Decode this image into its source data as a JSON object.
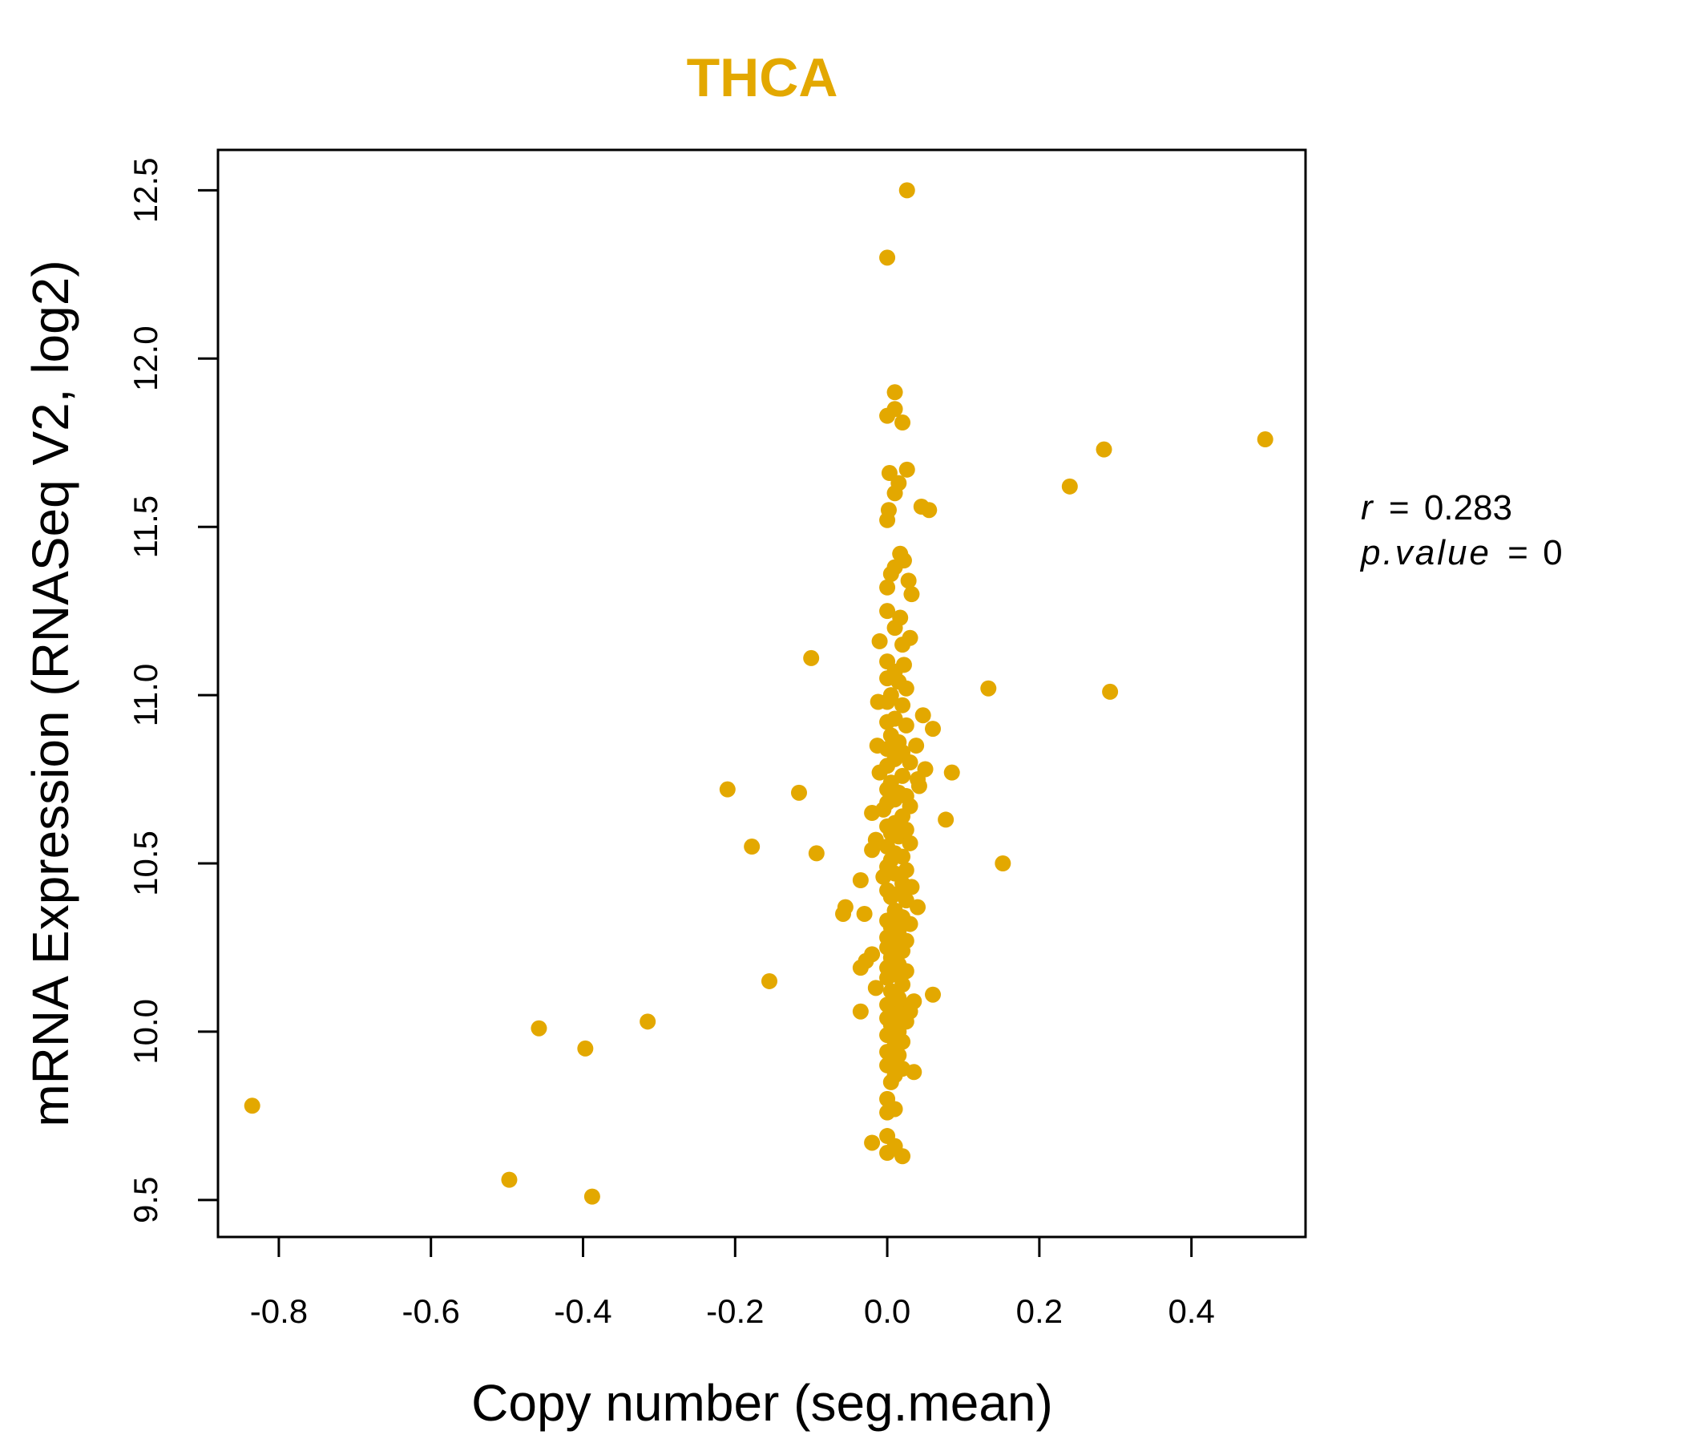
{
  "chart_data": {
    "type": "scatter",
    "title": "THCA",
    "xlabel": "Copy number (seg.mean)",
    "ylabel": "mRNA Expression (RNASeq V2, log2)",
    "xlim": [
      -0.88,
      0.55
    ],
    "ylim": [
      9.39,
      12.62
    ],
    "xticks": [
      -0.8,
      -0.6,
      -0.4,
      -0.2,
      0.0,
      0.2,
      0.4
    ],
    "xtick_labels": [
      "-0.8",
      "-0.6",
      "-0.4",
      "-0.2",
      "0.0",
      "0.2",
      "0.4"
    ],
    "yticks": [
      9.5,
      10.0,
      10.5,
      11.0,
      11.5,
      12.0,
      12.5
    ],
    "ytick_labels": [
      "9.5",
      "10.0",
      "10.5",
      "11.0",
      "11.5",
      "12.0",
      "12.5"
    ],
    "color": "#E3A800",
    "stats": {
      "r_label": "r",
      "r_value": "0.283",
      "p_label": "p.value",
      "p_value": "0"
    },
    "points": [
      [
        0.026,
        12.5
      ],
      [
        0.0,
        12.3
      ],
      [
        0.01,
        11.9
      ],
      [
        0.0,
        11.83
      ],
      [
        0.01,
        11.85
      ],
      [
        0.02,
        11.81
      ],
      [
        0.497,
        11.76
      ],
      [
        0.285,
        11.73
      ],
      [
        0.026,
        11.67
      ],
      [
        0.003,
        11.66
      ],
      [
        0.015,
        11.63
      ],
      [
        0.01,
        11.6
      ],
      [
        0.24,
        11.62
      ],
      [
        0.045,
        11.56
      ],
      [
        0.055,
        11.55
      ],
      [
        0.002,
        11.55
      ],
      [
        0.0,
        11.52
      ],
      [
        0.017,
        11.42
      ],
      [
        0.022,
        11.4
      ],
      [
        0.01,
        11.38
      ],
      [
        0.005,
        11.36
      ],
      [
        0.028,
        11.34
      ],
      [
        0.0,
        11.32
      ],
      [
        0.032,
        11.3
      ],
      [
        0.0,
        11.25
      ],
      [
        0.017,
        11.23
      ],
      [
        0.01,
        11.2
      ],
      [
        0.03,
        11.17
      ],
      [
        -0.01,
        11.16
      ],
      [
        0.02,
        11.15
      ],
      [
        -0.1,
        11.11
      ],
      [
        0.0,
        11.1
      ],
      [
        0.022,
        11.09
      ],
      [
        0.01,
        11.07
      ],
      [
        0.0,
        11.05
      ],
      [
        0.015,
        11.04
      ],
      [
        0.025,
        11.02
      ],
      [
        0.133,
        11.02
      ],
      [
        0.293,
        11.01
      ],
      [
        0.005,
        11.0
      ],
      [
        0.0,
        10.98
      ],
      [
        -0.012,
        10.98
      ],
      [
        0.02,
        10.97
      ],
      [
        0.047,
        10.94
      ],
      [
        0.01,
        10.93
      ],
      [
        0.0,
        10.92
      ],
      [
        0.025,
        10.91
      ],
      [
        0.06,
        10.9
      ],
      [
        0.005,
        10.88
      ],
      [
        0.015,
        10.86
      ],
      [
        -0.013,
        10.85
      ],
      [
        0.038,
        10.85
      ],
      [
        0.0,
        10.84
      ],
      [
        0.02,
        10.83
      ],
      [
        0.01,
        10.81
      ],
      [
        0.03,
        10.8
      ],
      [
        0.0,
        10.79
      ],
      [
        0.05,
        10.78
      ],
      [
        -0.01,
        10.77
      ],
      [
        0.085,
        10.77
      ],
      [
        0.02,
        10.76
      ],
      [
        0.04,
        10.75
      ],
      [
        0.005,
        10.74
      ],
      [
        0.042,
        10.73
      ],
      [
        0.0,
        10.72
      ],
      [
        0.015,
        10.71
      ],
      [
        -0.21,
        10.72
      ],
      [
        -0.116,
        10.71
      ],
      [
        0.025,
        10.7
      ],
      [
        0.01,
        10.69
      ],
      [
        0.0,
        10.68
      ],
      [
        0.03,
        10.67
      ],
      [
        -0.005,
        10.66
      ],
      [
        -0.02,
        10.65
      ],
      [
        0.02,
        10.64
      ],
      [
        0.077,
        10.63
      ],
      [
        0.01,
        10.62
      ],
      [
        0.0,
        10.61
      ],
      [
        0.025,
        10.6
      ],
      [
        0.005,
        10.59
      ],
      [
        0.015,
        10.58
      ],
      [
        -0.015,
        10.57
      ],
      [
        0.03,
        10.56
      ],
      [
        -0.178,
        10.55
      ],
      [
        0.0,
        10.55
      ],
      [
        -0.02,
        10.54
      ],
      [
        0.01,
        10.53
      ],
      [
        -0.093,
        10.53
      ],
      [
        0.02,
        10.52
      ],
      [
        0.005,
        10.51
      ],
      [
        0.152,
        10.5
      ],
      [
        0.0,
        10.49
      ],
      [
        0.025,
        10.48
      ],
      [
        0.01,
        10.47
      ],
      [
        -0.005,
        10.46
      ],
      [
        -0.035,
        10.45
      ],
      [
        0.02,
        10.44
      ],
      [
        0.032,
        10.43
      ],
      [
        0.0,
        10.42
      ],
      [
        0.015,
        10.41
      ],
      [
        0.005,
        10.4
      ],
      [
        0.025,
        10.39
      ],
      [
        -0.055,
        10.37
      ],
      [
        0.04,
        10.37
      ],
      [
        0.01,
        10.36
      ],
      [
        -0.058,
        10.35
      ],
      [
        -0.03,
        10.35
      ],
      [
        0.02,
        10.34
      ],
      [
        0.0,
        10.33
      ],
      [
        0.03,
        10.32
      ],
      [
        0.005,
        10.31
      ],
      [
        0.015,
        10.3
      ],
      [
        0.0,
        10.28
      ],
      [
        0.025,
        10.27
      ],
      [
        0.01,
        10.26
      ],
      [
        0.0,
        10.25
      ],
      [
        0.02,
        10.24
      ],
      [
        -0.02,
        10.23
      ],
      [
        0.005,
        10.22
      ],
      [
        -0.028,
        10.21
      ],
      [
        0.015,
        10.2
      ],
      [
        0.0,
        10.19
      ],
      [
        -0.035,
        10.19
      ],
      [
        0.025,
        10.18
      ],
      [
        0.01,
        10.17
      ],
      [
        0.0,
        10.16
      ],
      [
        -0.155,
        10.15
      ],
      [
        0.02,
        10.14
      ],
      [
        -0.015,
        10.13
      ],
      [
        0.005,
        10.12
      ],
      [
        0.06,
        10.11
      ],
      [
        0.015,
        10.1
      ],
      [
        0.035,
        10.09
      ],
      [
        0.0,
        10.08
      ],
      [
        0.02,
        10.07
      ],
      [
        0.03,
        10.06
      ],
      [
        -0.035,
        10.06
      ],
      [
        0.01,
        10.05
      ],
      [
        0.0,
        10.04
      ],
      [
        0.025,
        10.03
      ],
      [
        -0.315,
        10.03
      ],
      [
        0.005,
        10.02
      ],
      [
        -0.458,
        10.01
      ],
      [
        0.015,
        10.0
      ],
      [
        0.0,
        9.99
      ],
      [
        0.02,
        9.97
      ],
      [
        0.01,
        9.96
      ],
      [
        -0.397,
        9.95
      ],
      [
        0.0,
        9.94
      ],
      [
        0.015,
        9.93
      ],
      [
        0.005,
        9.91
      ],
      [
        0.0,
        9.9
      ],
      [
        0.02,
        9.89
      ],
      [
        0.035,
        9.88
      ],
      [
        0.01,
        9.87
      ],
      [
        0.005,
        9.85
      ],
      [
        0.0,
        9.8
      ],
      [
        -0.835,
        9.78
      ],
      [
        0.01,
        9.77
      ],
      [
        0.0,
        9.76
      ],
      [
        0.0,
        9.69
      ],
      [
        -0.02,
        9.67
      ],
      [
        0.01,
        9.66
      ],
      [
        0.0,
        9.64
      ],
      [
        0.02,
        9.63
      ],
      [
        -0.497,
        9.56
      ],
      [
        -0.388,
        9.51
      ]
    ]
  }
}
